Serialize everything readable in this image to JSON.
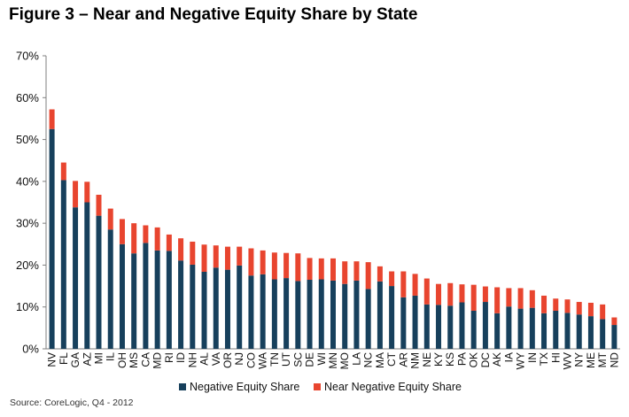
{
  "title": "Figure 3 – Near and Negative Equity Share by State",
  "source": "Source: CoreLogic, Q4 - 2012",
  "colors": {
    "negative": "#17405c",
    "near": "#e8452f"
  },
  "chart_data": {
    "type": "bar",
    "stacked": true,
    "title": "Figure 3 – Near and Negative Equity Share by State",
    "xlabel": "",
    "ylabel": "",
    "ylim": [
      0,
      70
    ],
    "yticks": [
      "0%",
      "10%",
      "20%",
      "30%",
      "40%",
      "50%",
      "60%",
      "70%"
    ],
    "legend": "bottom",
    "categories": [
      "NV",
      "FL",
      "GA",
      "AZ",
      "MI",
      "IL",
      "OH",
      "MS",
      "CA",
      "MD",
      "RI",
      "ID",
      "NH",
      "AL",
      "VA",
      "OR",
      "NJ",
      "CO",
      "WA",
      "TN",
      "UT",
      "SC",
      "DE",
      "WI",
      "MN",
      "MO",
      "LA",
      "NC",
      "MA",
      "CT",
      "AR",
      "NM",
      "NE",
      "KY",
      "KS",
      "PA",
      "OK",
      "DC",
      "AK",
      "IA",
      "WY",
      "IN",
      "TX",
      "HI",
      "WV",
      "NY",
      "ME",
      "MT",
      "ND"
    ],
    "series": [
      {
        "name": "Negative Equity Share",
        "values": [
          52.5,
          40.3,
          33.8,
          35.0,
          31.8,
          28.5,
          25.0,
          22.8,
          25.3,
          23.5,
          23.4,
          21.1,
          20.1,
          18.4,
          19.4,
          18.9,
          19.9,
          17.5,
          17.8,
          16.6,
          16.9,
          16.2,
          16.5,
          16.6,
          16.3,
          15.5,
          16.3,
          14.3,
          16.1,
          15.0,
          12.3,
          12.7,
          10.6,
          10.5,
          10.3,
          11.1,
          9.1,
          11.2,
          8.5,
          10.1,
          9.6,
          9.8,
          8.5,
          9.1,
          8.6,
          8.2,
          7.8,
          7.1,
          5.7
        ]
      },
      {
        "name": "Near Negative Equity Share",
        "values": [
          4.7,
          4.2,
          6.3,
          4.9,
          5.0,
          5.0,
          6.0,
          7.2,
          4.2,
          5.5,
          3.9,
          5.3,
          5.5,
          6.5,
          5.3,
          5.5,
          4.5,
          6.5,
          5.7,
          6.4,
          6.0,
          6.6,
          5.2,
          5.0,
          5.3,
          5.4,
          4.6,
          6.4,
          3.6,
          3.5,
          6.2,
          5.2,
          6.2,
          5.0,
          5.4,
          4.3,
          6.2,
          3.7,
          6.2,
          4.4,
          4.9,
          4.2,
          4.2,
          2.9,
          3.2,
          3.0,
          3.2,
          3.5,
          1.8
        ]
      }
    ]
  }
}
